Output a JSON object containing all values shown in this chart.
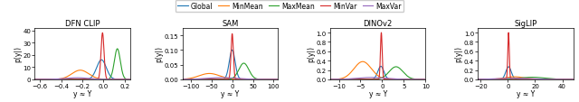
{
  "subplots": [
    {
      "title": "DFN CLIP",
      "xlabel": "y ≈ Y",
      "xlim": [
        -0.65,
        0.25
      ],
      "ylim": [
        0,
        42
      ],
      "yticks": [
        0,
        10,
        20,
        30,
        40
      ],
      "distributions": {
        "Global": {
          "mu": -0.02,
          "sigma": 0.045,
          "scale": 16
        },
        "MinMean": {
          "mu": -0.22,
          "sigma": 0.08,
          "scale": 7.5
        },
        "MaxMean": {
          "mu": 0.13,
          "sigma": 0.028,
          "scale": 25
        },
        "MinVar": {
          "mu": -0.01,
          "sigma": 0.014,
          "scale": 38
        },
        "MaxVar": {
          "mu": -0.25,
          "sigma": 0.11,
          "scale": 1.3
        }
      }
    },
    {
      "title": "SAM",
      "xlabel": "y ≈ Y",
      "xlim": [
        -120,
        110
      ],
      "ylim": [
        0,
        0.175
      ],
      "yticks": [
        0.0,
        0.05,
        0.1,
        0.15
      ],
      "distributions": {
        "Global": {
          "mu": 0.0,
          "sigma": 7.0,
          "scale": 0.1
        },
        "MinMean": {
          "mu": -55,
          "sigma": 25,
          "scale": 0.02
        },
        "MaxMean": {
          "mu": 28,
          "sigma": 12,
          "scale": 0.055
        },
        "MinVar": {
          "mu": 0.0,
          "sigma": 2.8,
          "scale": 0.155
        },
        "MaxVar": {
          "mu": -25,
          "sigma": 35,
          "scale": 0.006
        }
      }
    },
    {
      "title": "DINOv2",
      "xlabel": "y ≈ Y",
      "xlim": [
        -12,
        10
      ],
      "ylim": [
        0,
        1.1
      ],
      "yticks": [
        0.0,
        0.2,
        0.4,
        0.6,
        0.8,
        1.0
      ],
      "distributions": {
        "Global": {
          "mu": -0.3,
          "sigma": 0.7,
          "scale": 0.28
        },
        "MinMean": {
          "mu": -4.5,
          "sigma": 2.0,
          "scale": 0.38
        },
        "MaxMean": {
          "mu": 3.2,
          "sigma": 1.6,
          "scale": 0.27
        },
        "MinVar": {
          "mu": -0.2,
          "sigma": 0.2,
          "scale": 1.0
        },
        "MaxVar": {
          "mu": -2.5,
          "sigma": 3.2,
          "scale": 0.04
        }
      }
    },
    {
      "title": "SigLIP",
      "xlabel": "y ≈ Y",
      "xlim": [
        -22,
        48
      ],
      "ylim": [
        0,
        1.1
      ],
      "yticks": [
        0.0,
        0.2,
        0.4,
        0.6,
        0.8,
        1.0
      ],
      "distributions": {
        "Global": {
          "mu": 0.5,
          "sigma": 2.0,
          "scale": 0.27
        },
        "MinMean": {
          "mu": 5.0,
          "sigma": 7.0,
          "scale": 0.055
        },
        "MaxMean": {
          "mu": 18.0,
          "sigma": 9.0,
          "scale": 0.045
        },
        "MinVar": {
          "mu": 0.5,
          "sigma": 0.55,
          "scale": 1.0
        },
        "MaxVar": {
          "mu": 5.0,
          "sigma": 12.0,
          "scale": 0.025
        }
      }
    }
  ],
  "legend_labels": [
    "Global",
    "MinMean",
    "MaxMean",
    "MinVar",
    "MaxVar"
  ],
  "colors": {
    "Global": "#1f77b4",
    "MinMean": "#ff7f0e",
    "MaxMean": "#2ca02c",
    "MinVar": "#d62728",
    "MaxVar": "#9467bd"
  },
  "figsize": [
    6.4,
    1.14
  ],
  "dpi": 100
}
